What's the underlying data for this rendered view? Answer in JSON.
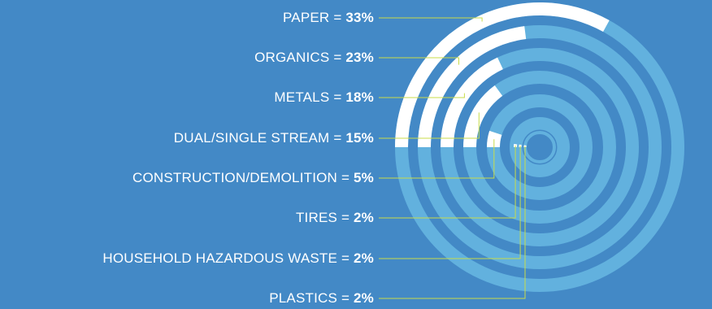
{
  "colors": {
    "background": "#4389c6",
    "track": "#62b1de",
    "value": "#ffffff",
    "leader": "#c8dc4a"
  },
  "chart_data": {
    "type": "radial-bar",
    "title": "",
    "unit": "%",
    "max_value": 100,
    "categories": [
      "PAPER",
      "ORGANICS",
      "METALS",
      "DUAL/SINGLE STREAM",
      "CONSTRUCTION/DEMOLITION",
      "TIRES",
      "HOUSEHOLD HAZARDOUS WASTE",
      "PLASTICS"
    ],
    "values": [
      33,
      23,
      18,
      15,
      5,
      2,
      2,
      2
    ],
    "labels": [
      {
        "name": "PAPER",
        "eq": " = ",
        "value": "33%"
      },
      {
        "name": "ORGANICS",
        "eq": " = ",
        "value": "23%"
      },
      {
        "name": "METALS",
        "eq": " = ",
        "value": "18%"
      },
      {
        "name": "DUAL/SINGLE STREAM",
        "eq": " = ",
        "value": "15%"
      },
      {
        "name": "CONSTRUCTION/DEMOLITION",
        "eq": " = ",
        "value": "5%"
      },
      {
        "name": "TIRES",
        "eq": " = ",
        "value": "2%"
      },
      {
        "name": "HOUSEHOLD HAZARDOUS WASTE",
        "eq": " = ",
        "value": "2%"
      },
      {
        "name": "PLASTICS",
        "eq": " = ",
        "value": "2%"
      }
    ]
  }
}
